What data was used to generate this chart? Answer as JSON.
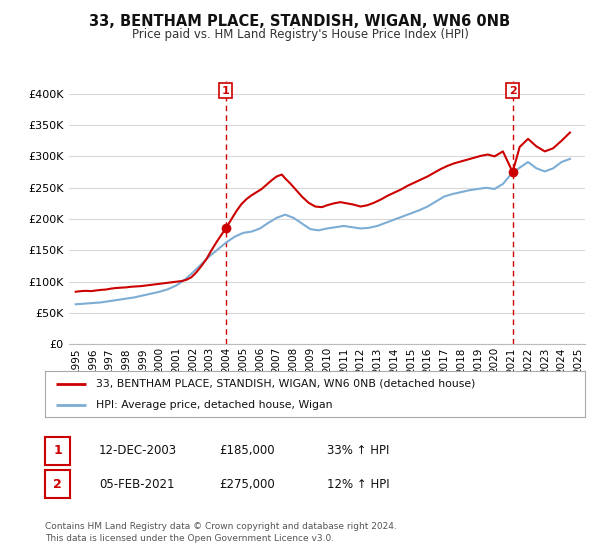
{
  "title": "33, BENTHAM PLACE, STANDISH, WIGAN, WN6 0NB",
  "subtitle": "Price paid vs. HM Land Registry's House Price Index (HPI)",
  "background_color": "#ffffff",
  "grid_color": "#d8d8d8",
  "legend_line1": "33, BENTHAM PLACE, STANDISH, WIGAN, WN6 0NB (detached house)",
  "legend_line2": "HPI: Average price, detached house, Wigan",
  "annotation1_date": "12-DEC-2003",
  "annotation1_price": "£185,000",
  "annotation1_hpi": "33% ↑ HPI",
  "annotation2_date": "05-FEB-2021",
  "annotation2_price": "£275,000",
  "annotation2_hpi": "12% ↑ HPI",
  "footnote": "Contains HM Land Registry data © Crown copyright and database right 2024.\nThis data is licensed under the Open Government Licence v3.0.",
  "sale_color": "#cc0000",
  "hpi_color": "#7dadd4",
  "vline_color": "#cc0000",
  "marker_color": "#cc0000",
  "ylim": [
    0,
    420000
  ],
  "yticks": [
    0,
    50000,
    100000,
    150000,
    200000,
    250000,
    300000,
    350000,
    400000
  ],
  "sale1_x": 2003.96,
  "sale1_y": 185000,
  "sale2_x": 2021.08,
  "sale2_y": 275000,
  "hpi_x": [
    1995.0,
    1995.5,
    1996.0,
    1996.5,
    1997.0,
    1997.5,
    1998.0,
    1998.5,
    1999.0,
    1999.5,
    2000.0,
    2000.5,
    2001.0,
    2001.5,
    2002.0,
    2002.5,
    2003.0,
    2003.5,
    2004.0,
    2004.5,
    2005.0,
    2005.5,
    2006.0,
    2006.5,
    2007.0,
    2007.5,
    2008.0,
    2008.5,
    2009.0,
    2009.5,
    2010.0,
    2010.5,
    2011.0,
    2011.5,
    2012.0,
    2012.5,
    2013.0,
    2013.5,
    2014.0,
    2014.5,
    2015.0,
    2015.5,
    2016.0,
    2016.5,
    2017.0,
    2017.5,
    2018.0,
    2018.5,
    2019.0,
    2019.5,
    2020.0,
    2020.5,
    2021.0,
    2021.5,
    2022.0,
    2022.5,
    2023.0,
    2023.5,
    2024.0,
    2024.5
  ],
  "hpi_y": [
    64000,
    65000,
    66000,
    67000,
    69000,
    71000,
    73000,
    75000,
    78000,
    81000,
    84000,
    88000,
    94000,
    103000,
    115000,
    128000,
    141000,
    152000,
    163000,
    172000,
    178000,
    180000,
    185000,
    194000,
    202000,
    207000,
    202000,
    193000,
    184000,
    182000,
    185000,
    187000,
    189000,
    187000,
    185000,
    186000,
    189000,
    194000,
    199000,
    204000,
    209000,
    214000,
    220000,
    228000,
    236000,
    240000,
    243000,
    246000,
    248000,
    250000,
    248000,
    256000,
    272000,
    282000,
    291000,
    281000,
    276000,
    281000,
    291000,
    296000
  ],
  "sale_x": [
    1995.0,
    1995.3,
    1995.6,
    1995.9,
    1996.2,
    1996.5,
    1996.8,
    1997.1,
    1997.4,
    1997.7,
    1998.0,
    1998.3,
    1998.6,
    1998.9,
    1999.2,
    1999.5,
    1999.8,
    2000.1,
    2000.4,
    2000.7,
    2001.0,
    2001.3,
    2001.6,
    2001.9,
    2002.2,
    2002.5,
    2002.8,
    2003.1,
    2003.4,
    2003.7,
    2003.96,
    2004.3,
    2004.6,
    2004.9,
    2005.2,
    2005.5,
    2005.8,
    2006.1,
    2006.4,
    2006.7,
    2007.0,
    2007.3,
    2007.5,
    2007.8,
    2008.1,
    2008.5,
    2008.9,
    2009.3,
    2009.7,
    2010.0,
    2010.4,
    2010.8,
    2011.2,
    2011.6,
    2012.0,
    2012.4,
    2012.8,
    2013.2,
    2013.6,
    2014.0,
    2014.4,
    2014.8,
    2015.2,
    2015.6,
    2016.0,
    2016.4,
    2016.8,
    2017.2,
    2017.6,
    2018.0,
    2018.4,
    2018.8,
    2019.2,
    2019.6,
    2020.0,
    2020.5,
    2021.08,
    2021.5,
    2022.0,
    2022.5,
    2023.0,
    2023.5,
    2024.0,
    2024.5
  ],
  "sale_y": [
    84000,
    85000,
    85500,
    85000,
    86000,
    87000,
    87500,
    89000,
    90000,
    90500,
    91000,
    92000,
    92500,
    93000,
    94000,
    95000,
    96000,
    97000,
    98000,
    99000,
    100000,
    101000,
    103000,
    107000,
    115000,
    125000,
    136000,
    150000,
    163000,
    175000,
    185000,
    200000,
    213000,
    224000,
    232000,
    238000,
    243000,
    248000,
    255000,
    262000,
    268000,
    271000,
    265000,
    257000,
    248000,
    236000,
    226000,
    220000,
    219000,
    222000,
    225000,
    227000,
    225000,
    223000,
    220000,
    222000,
    226000,
    231000,
    237000,
    242000,
    247000,
    253000,
    258000,
    263000,
    268000,
    274000,
    280000,
    285000,
    289000,
    292000,
    295000,
    298000,
    301000,
    303000,
    300000,
    308000,
    275000,
    315000,
    328000,
    316000,
    308000,
    313000,
    325000,
    338000
  ],
  "xtick_years": [
    1995,
    1996,
    1997,
    1998,
    1999,
    2000,
    2001,
    2002,
    2003,
    2004,
    2005,
    2006,
    2007,
    2008,
    2009,
    2010,
    2011,
    2012,
    2013,
    2014,
    2015,
    2016,
    2017,
    2018,
    2019,
    2020,
    2021,
    2022,
    2023,
    2024,
    2025
  ]
}
